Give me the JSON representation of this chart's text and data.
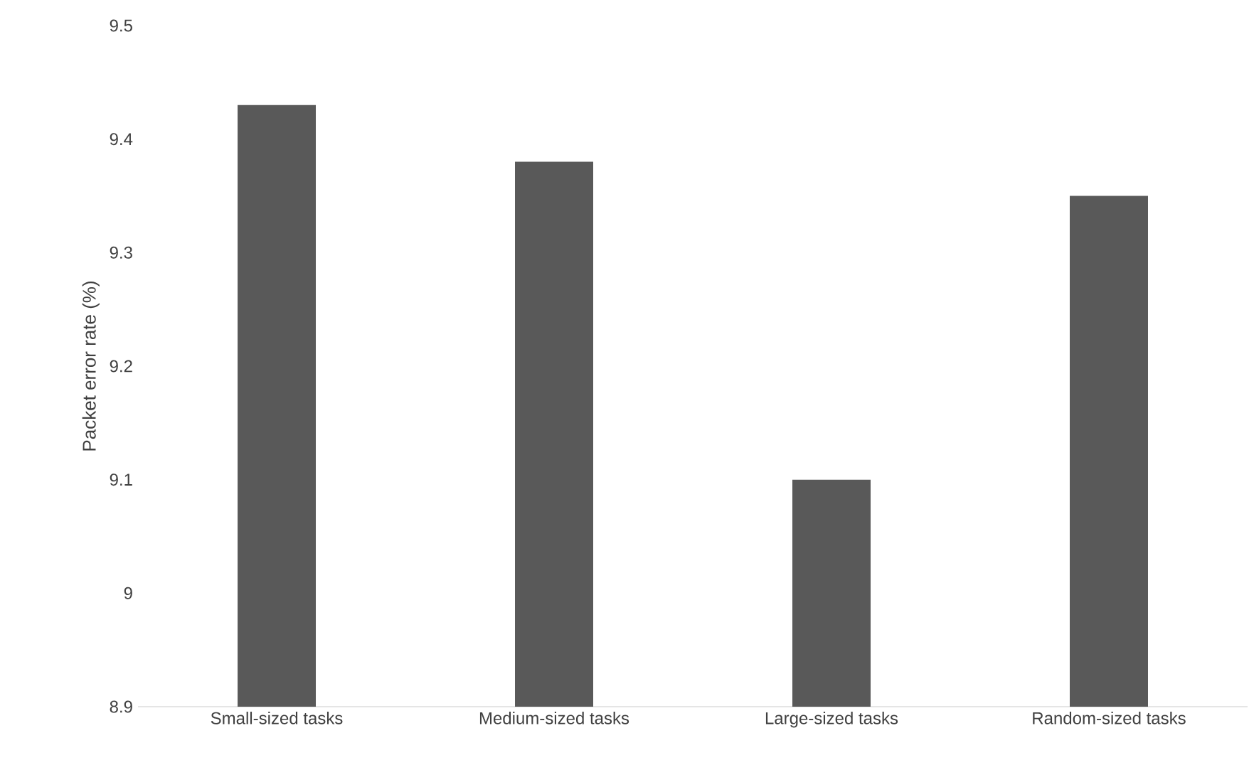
{
  "chart_data": {
    "type": "bar",
    "ylabel": "Packet error rate (%)",
    "categories": [
      "Small-sized tasks",
      "Medium-sized tasks",
      "Large-sized tasks",
      "Random-sized tasks"
    ],
    "values": [
      9.43,
      9.38,
      9.1,
      9.35
    ],
    "color": "#595959",
    "ylim": [
      8.9,
      9.5
    ],
    "yticks": [
      8.9,
      9,
      9.1,
      9.2,
      9.3,
      9.4,
      9.5
    ],
    "grid": false
  }
}
